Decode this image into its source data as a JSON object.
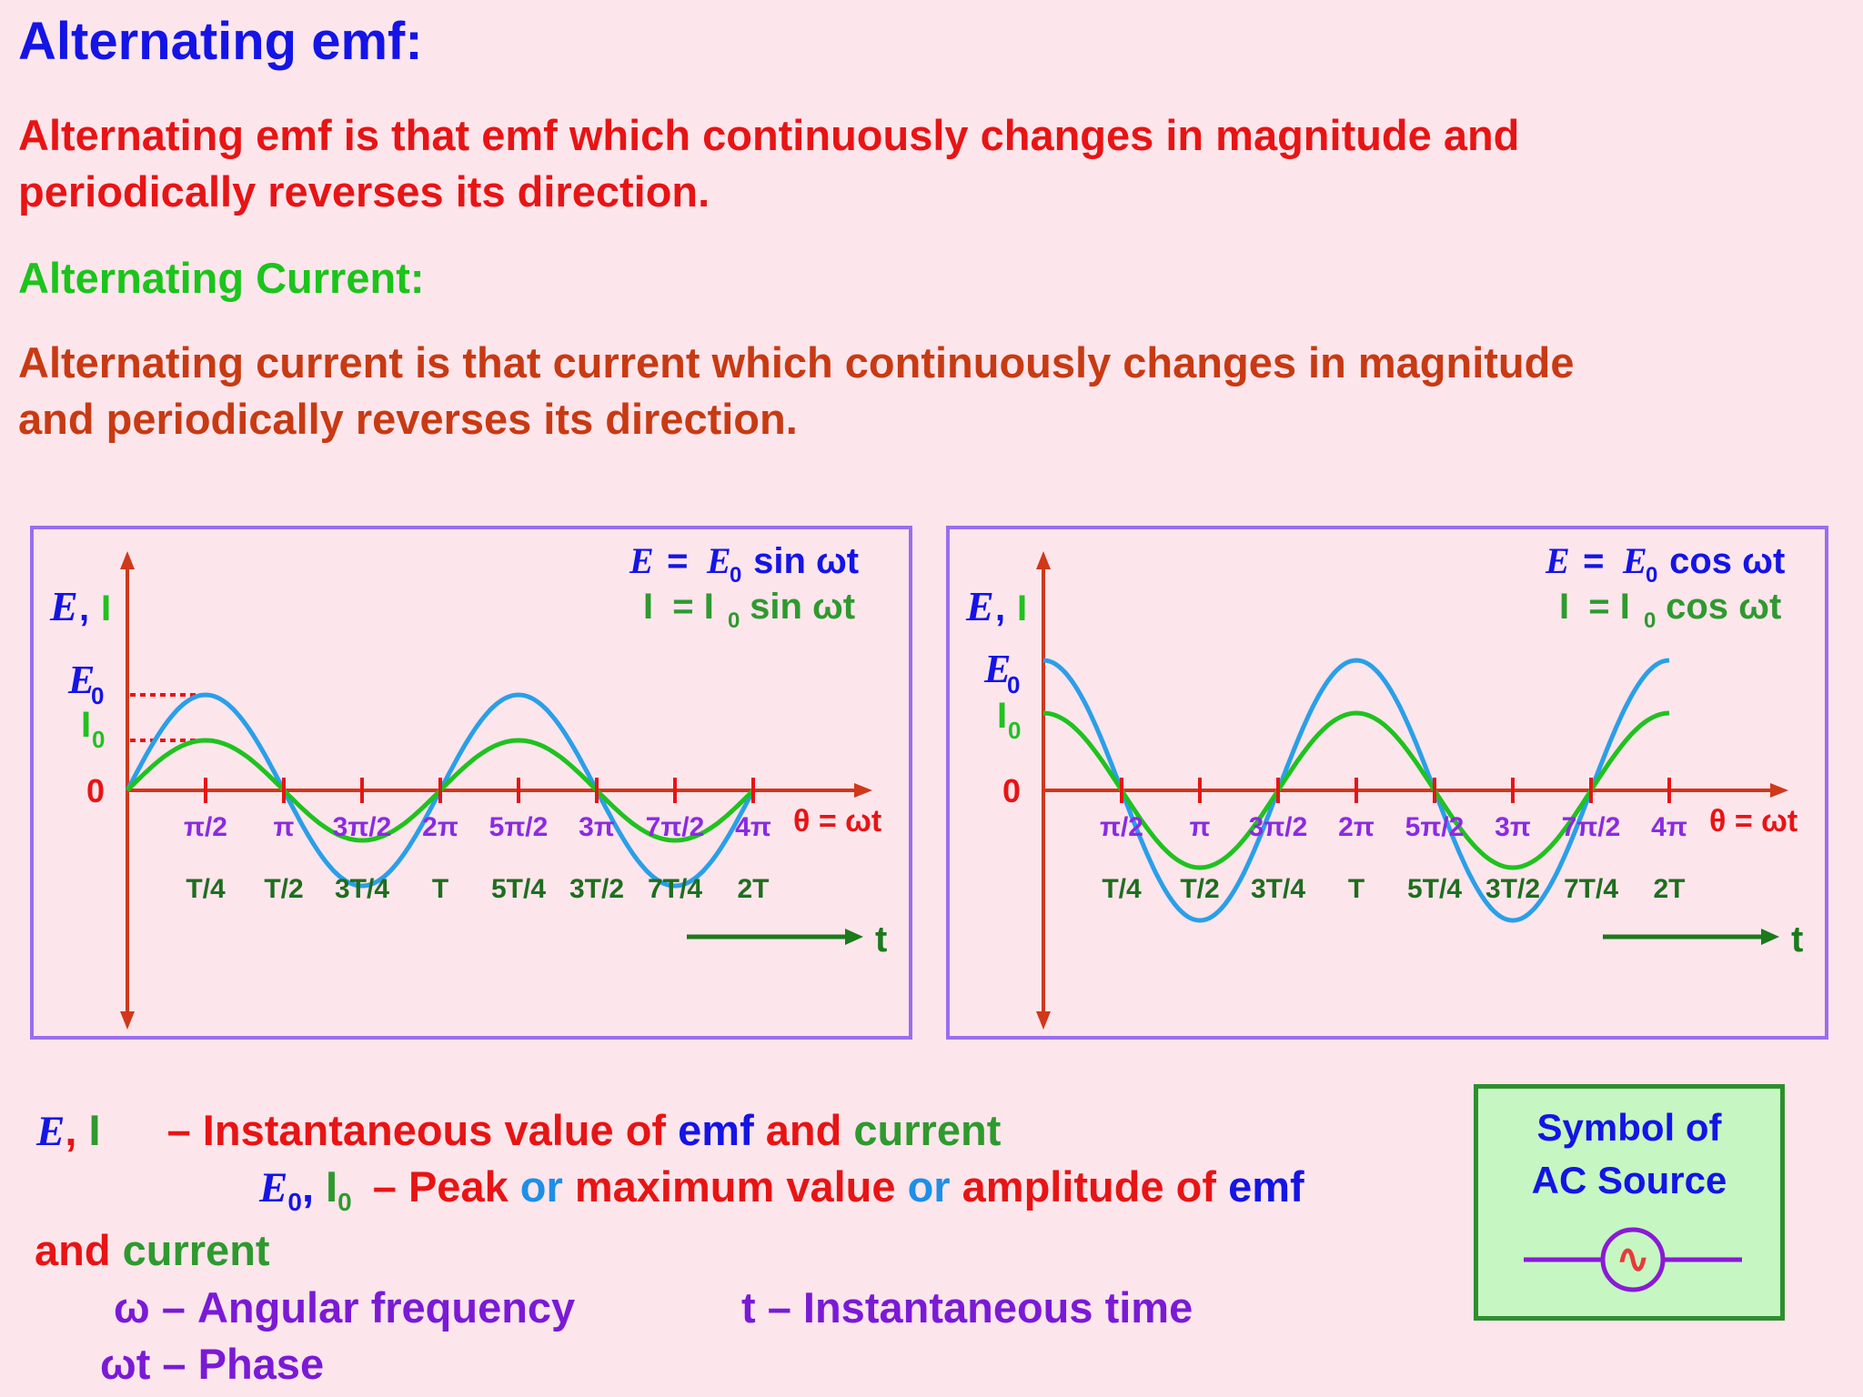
{
  "heading": "Alternating emf:",
  "emf_definition": [
    "Alternating emf is that emf  which continuously changes in magnitude and",
    "periodically reverses its direction."
  ],
  "current_heading": "Alternating Current:",
  "current_definition": [
    "Alternating current is that current  which continuously changes in magnitude",
    "and periodically reverses its direction."
  ],
  "graphs": [
    {
      "emf_equation": {
        "E": "E",
        "eq": " = ",
        "E0": "E",
        "sub0": "0",
        "rest": " sin ωt"
      },
      "current_equation": {
        "I": "I",
        "eq": "  = I",
        "sub0": "0",
        "rest": " sin ωt"
      },
      "y_label": {
        "E": "E",
        "comma": " ,",
        "I": "I"
      },
      "peak_labels": {
        "E0": "E",
        "E0_sub": "0",
        "I0": "I",
        "I0_sub": "0"
      },
      "origin": "0",
      "angle_ticks": [
        "π/2",
        "π",
        "3π/2",
        "2π",
        "5π/2",
        "3π",
        "7π/2",
        "4π"
      ],
      "time_ticks": [
        "T/4",
        "T/2",
        "3T/4",
        "T",
        "5T/4",
        "3T/2",
        "7T/4",
        "2T"
      ],
      "x_axis_label": "θ = ωt",
      "time_axis_label": "t"
    },
    {
      "emf_equation": {
        "E": "E",
        "eq": " = ",
        "E0": "E",
        "sub0": "0",
        "rest": " cos ωt"
      },
      "current_equation": {
        "I": "I",
        "eq": "  = I",
        "sub0": "0",
        "rest": " cos ωt"
      },
      "y_label": {
        "E": "E",
        "comma": " ,",
        "I": "I"
      },
      "peak_labels": {
        "E0": "E",
        "E0_sub": "0",
        "I0": "I",
        "I0_sub": "0"
      },
      "origin": "0",
      "angle_ticks": [
        "π/2",
        "π",
        "3π/2",
        "2π",
        "5π/2",
        "3π",
        "7π/2",
        "4π"
      ],
      "time_ticks": [
        "T/4",
        "T/2",
        "3T/4",
        "T",
        "5T/4",
        "3T/2",
        "7T/4",
        "2T"
      ],
      "x_axis_label": "θ = ωt",
      "time_axis_label": "t"
    }
  ],
  "legend": {
    "line1": {
      "E": "E",
      "comma": ",",
      "I": " I",
      "dash": "– Instantaneous value of ",
      "emf": "emf",
      "and": " and ",
      "current": "current"
    },
    "line2": {
      "E0": "E",
      "sub": "0",
      "comma": ",",
      "I0": " I",
      "isub": "0",
      "dash": "– Peak ",
      "or1": "or",
      "maximum": " maximum value ",
      "or2": "or",
      "amplitude": " amplitude of ",
      "emf": "emf"
    },
    "line3": {
      "and": "and ",
      "current": "current"
    },
    "line4": {
      "omega": "ω – Angular frequency",
      "t": "t – Instantaneous time"
    },
    "line5": {
      "phase": "ωt – Phase"
    }
  },
  "symbol": {
    "title": "Symbol of\nAC Source",
    "glyph": "∿"
  },
  "colors": {
    "background": "#fde5ec",
    "axis": "#d0381a",
    "emf_curve": "#2a9fe8",
    "current_curve": "#1fc21f",
    "time_arrow": "#1b7a1b",
    "panel_border": "#9b6ded",
    "tick_angle": "#8a2be2",
    "tick_time": "#1e6e1e"
  }
}
